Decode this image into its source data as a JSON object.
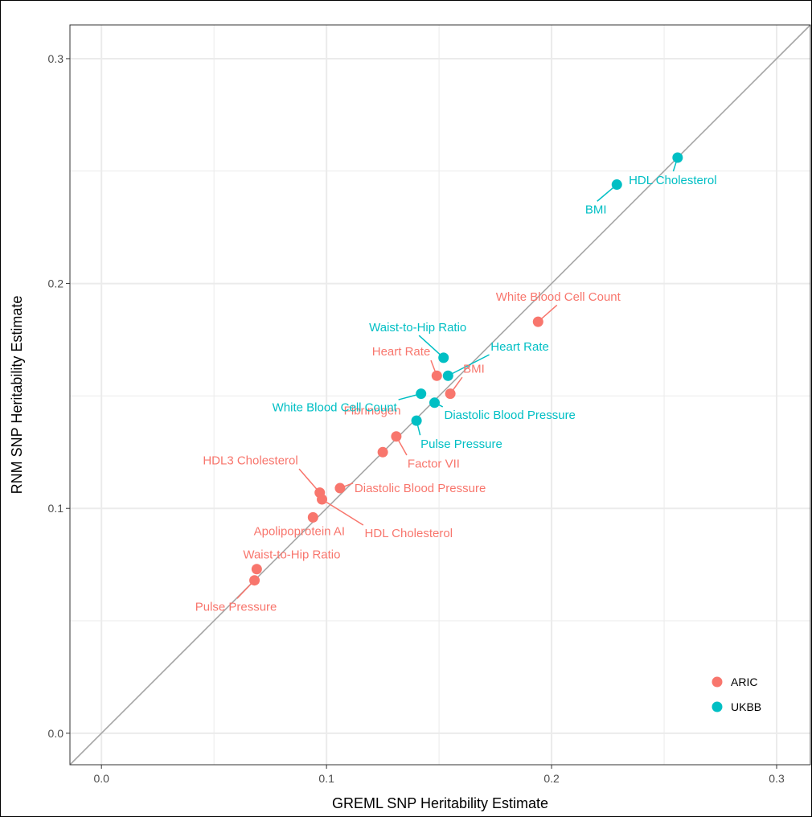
{
  "chart_data": {
    "type": "scatter",
    "title": "",
    "xlabel": "GREML SNP Heritability Estimate",
    "ylabel": "RNM SNP Heritability Estimate",
    "xlim": [
      -0.014,
      0.315
    ],
    "ylim": [
      -0.014,
      0.315
    ],
    "x_ticks": [
      0.0,
      0.1,
      0.2,
      0.3
    ],
    "y_ticks": [
      0.0,
      0.1,
      0.2,
      0.3
    ],
    "x_tick_labels": [
      "0.0",
      "0.1",
      "0.2",
      "0.3"
    ],
    "y_tick_labels": [
      "0.0",
      "0.1",
      "0.2",
      "0.3"
    ],
    "grid": true,
    "reference_line": "y = x",
    "legend_position": "bottom-right",
    "colors": {
      "ARIC": "#f8766d",
      "UKBB": "#00bfc4",
      "grid": "#ebebeb",
      "reference": "#a6a6a6"
    },
    "series": [
      {
        "name": "ARIC",
        "points": [
          {
            "label": "White Blood Cell Count",
            "x": 0.194,
            "y": 0.183
          },
          {
            "label": "Heart Rate",
            "x": 0.149,
            "y": 0.159
          },
          {
            "label": "BMI",
            "x": 0.155,
            "y": 0.151
          },
          {
            "label": "Factor VII",
            "x": 0.131,
            "y": 0.132
          },
          {
            "label": "Fibrinogen",
            "x": 0.125,
            "y": 0.125
          },
          {
            "label": "Diastolic Blood Pressure",
            "x": 0.106,
            "y": 0.109
          },
          {
            "label": "HDL3 Cholesterol",
            "x": 0.097,
            "y": 0.107
          },
          {
            "label": "HDL Cholesterol",
            "x": 0.098,
            "y": 0.104
          },
          {
            "label": "Apolipoprotein AI",
            "x": 0.094,
            "y": 0.096
          },
          {
            "label": "Waist-to-Hip Ratio",
            "x": 0.069,
            "y": 0.073
          },
          {
            "label": "Pulse Pressure",
            "x": 0.068,
            "y": 0.068
          }
        ]
      },
      {
        "name": "UKBB",
        "points": [
          {
            "label": "HDL Cholesterol",
            "x": 0.256,
            "y": 0.256
          },
          {
            "label": "BMI",
            "x": 0.229,
            "y": 0.244
          },
          {
            "label": "Waist-to-Hip Ratio",
            "x": 0.152,
            "y": 0.167
          },
          {
            "label": "Heart Rate",
            "x": 0.154,
            "y": 0.159
          },
          {
            "label": "White Blood Cell Count",
            "x": 0.142,
            "y": 0.151
          },
          {
            "label": "Diastolic Blood Pressure",
            "x": 0.148,
            "y": 0.147
          },
          {
            "label": "Pulse Pressure",
            "x": 0.14,
            "y": 0.139
          }
        ]
      }
    ]
  }
}
